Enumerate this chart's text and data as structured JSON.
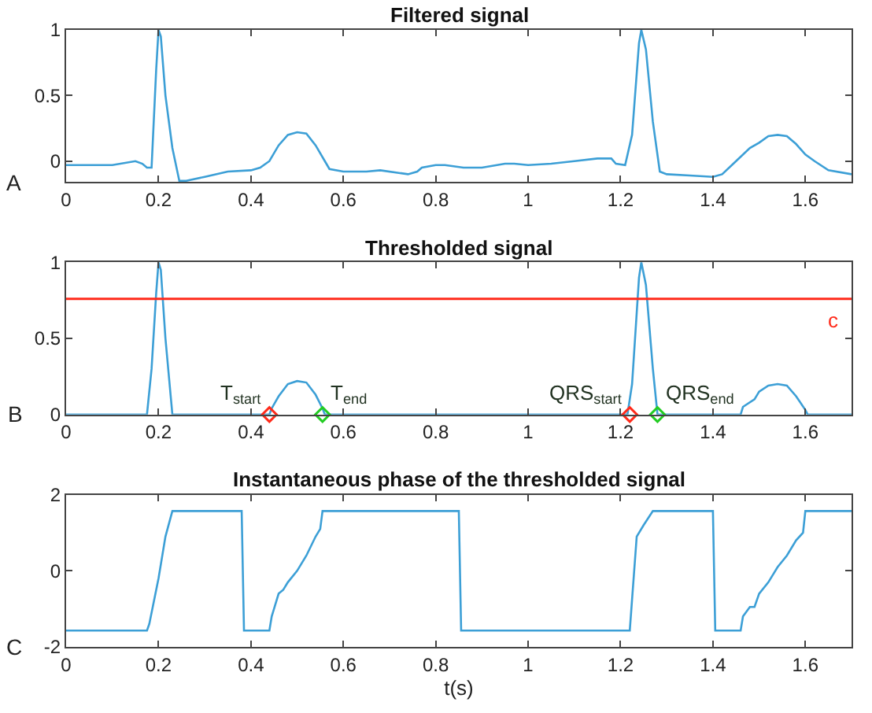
{
  "chart_data": [
    {
      "type": "line",
      "title": "Filtered signal",
      "annotations": [
        "A"
      ],
      "xlim": [
        0,
        1.7
      ],
      "xticks": [
        0,
        0.2,
        0.4,
        0.6,
        0.8,
        1,
        1.2,
        1.4,
        1.6
      ],
      "ylim": [
        -0.16,
        1
      ],
      "yticks": [
        0,
        0.5,
        1
      ],
      "x": [
        0,
        0.05,
        0.1,
        0.15,
        0.165,
        0.175,
        0.185,
        0.195,
        0.2,
        0.205,
        0.215,
        0.23,
        0.245,
        0.26,
        0.3,
        0.35,
        0.4,
        0.42,
        0.44,
        0.46,
        0.48,
        0.5,
        0.52,
        0.54,
        0.56,
        0.57,
        0.6,
        0.65,
        0.68,
        0.72,
        0.74,
        0.76,
        0.77,
        0.8,
        0.82,
        0.86,
        0.9,
        0.95,
        0.97,
        1.0,
        1.05,
        1.1,
        1.15,
        1.18,
        1.19,
        1.21,
        1.225,
        1.24,
        1.245,
        1.255,
        1.27,
        1.285,
        1.3,
        1.35,
        1.4,
        1.42,
        1.45,
        1.48,
        1.5,
        1.52,
        1.54,
        1.56,
        1.58,
        1.6,
        1.62,
        1.65,
        1.7
      ],
      "series": [
        {
          "color": "#3c9fd6",
          "values": [
            -0.03,
            -0.03,
            -0.03,
            0.0,
            -0.02,
            -0.05,
            -0.05,
            0.7,
            1.0,
            0.95,
            0.5,
            0.1,
            -0.15,
            -0.15,
            -0.12,
            -0.08,
            -0.07,
            -0.05,
            0.0,
            0.12,
            0.2,
            0.22,
            0.21,
            0.12,
            0.0,
            -0.06,
            -0.08,
            -0.08,
            -0.07,
            -0.09,
            -0.1,
            -0.08,
            -0.05,
            -0.03,
            -0.03,
            -0.05,
            -0.05,
            -0.02,
            -0.02,
            -0.03,
            -0.02,
            0.0,
            0.02,
            0.02,
            -0.02,
            -0.03,
            0.2,
            0.9,
            1.0,
            0.85,
            0.3,
            -0.08,
            -0.1,
            -0.11,
            -0.12,
            -0.1,
            0.0,
            0.1,
            0.14,
            0.19,
            0.2,
            0.19,
            0.13,
            0.05,
            0.0,
            -0.07,
            -0.1
          ]
        }
      ]
    },
    {
      "type": "line",
      "title": "Thresholded signal",
      "annotations": [
        "B",
        {
          "text": "T$_{start}$",
          "x": 0.44,
          "y": 0
        },
        {
          "text": "T$_{end}$",
          "x": 0.555,
          "y": 0
        },
        {
          "text": "QRS$_{start}$",
          "x": 1.22,
          "y": 0
        },
        {
          "text": "QRS$_{end}$",
          "x": 1.28,
          "y": 0
        }
      ],
      "xlim": [
        0,
        1.7
      ],
      "xticks": [
        0,
        0.2,
        0.4,
        0.6,
        0.8,
        1,
        1.2,
        1.4,
        1.6
      ],
      "ylim": [
        0,
        1
      ],
      "yticks": [
        0,
        0.5,
        1
      ],
      "ref_lines": [
        {
          "axis": "y",
          "value": 0.76,
          "label": "c",
          "color": "#ff2a1a"
        }
      ],
      "series": [
        {
          "color": "#3c9fd6",
          "x": [
            0,
            0.175,
            0.185,
            0.195,
            0.2,
            0.205,
            0.215,
            0.23,
            0.44,
            0.445,
            0.46,
            0.48,
            0.5,
            0.52,
            0.54,
            0.555,
            0.56,
            1.215,
            1.225,
            1.24,
            1.245,
            1.255,
            1.27,
            1.28,
            1.46,
            1.465,
            1.49,
            1.5,
            1.52,
            1.54,
            1.56,
            1.58,
            1.6,
            1.605,
            1.7
          ],
          "values": [
            0,
            0,
            0.3,
            0.8,
            1.0,
            0.95,
            0.5,
            0,
            0,
            0.04,
            0.12,
            0.2,
            0.22,
            0.21,
            0.13,
            0.04,
            0,
            0,
            0.2,
            0.9,
            1.0,
            0.85,
            0.3,
            0,
            0,
            0.05,
            0.1,
            0.15,
            0.19,
            0.2,
            0.19,
            0.12,
            0.03,
            0,
            0
          ]
        },
        {
          "type": "scatter",
          "marker": "diamond",
          "color": "#ff2a1a",
          "x": [
            0.44,
            1.22
          ],
          "values": [
            0,
            0
          ]
        },
        {
          "type": "scatter",
          "marker": "diamond",
          "color": "#22cc22",
          "x": [
            0.555,
            1.28
          ],
          "values": [
            0,
            0
          ]
        }
      ]
    },
    {
      "type": "line",
      "title": "Instantaneous phase of the thresholded signal",
      "xlabel": "t(s)",
      "annotations": [
        "C"
      ],
      "xlim": [
        0,
        1.7
      ],
      "xticks": [
        0,
        0.2,
        0.4,
        0.6,
        0.8,
        1,
        1.2,
        1.4,
        1.6
      ],
      "ylim": [
        -2,
        2
      ],
      "yticks": [
        -2,
        0,
        2
      ],
      "x": [
        0,
        0.175,
        0.18,
        0.2,
        0.215,
        0.23,
        0.38,
        0.385,
        0.44,
        0.445,
        0.46,
        0.47,
        0.48,
        0.5,
        0.52,
        0.54,
        0.55,
        0.555,
        0.85,
        0.855,
        1.22,
        1.235,
        1.25,
        1.27,
        1.4,
        1.405,
        1.46,
        1.465,
        1.48,
        1.49,
        1.5,
        1.52,
        1.54,
        1.56,
        1.58,
        1.595,
        1.6,
        1.7
      ],
      "series": [
        {
          "color": "#3c9fd6",
          "values": [
            -1.57,
            -1.57,
            -1.4,
            -0.2,
            0.9,
            1.57,
            1.57,
            -1.57,
            -1.57,
            -1.2,
            -0.6,
            -0.5,
            -0.3,
            0.0,
            0.4,
            0.9,
            1.1,
            1.57,
            1.57,
            -1.57,
            -1.57,
            0.9,
            1.2,
            1.57,
            1.57,
            -1.57,
            -1.57,
            -1.2,
            -0.95,
            -0.95,
            -0.6,
            -0.3,
            0.1,
            0.4,
            0.8,
            1.0,
            1.57,
            1.57
          ]
        }
      ]
    }
  ]
}
